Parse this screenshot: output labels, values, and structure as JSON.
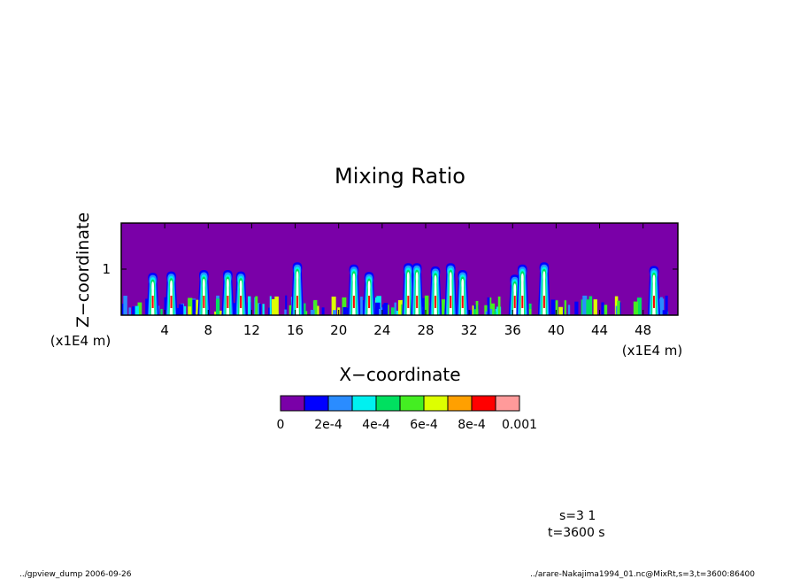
{
  "chart_data": {
    "type": "heatmap",
    "title": "Mixing Ratio",
    "xlabel": "X−coordinate",
    "ylabel": "Z−coordinate",
    "x_unit": "(x1E4 m)",
    "y_unit": "(x1E4 m)",
    "xlim": [
      0,
      51.2
    ],
    "ylim": [
      0,
      2
    ],
    "x_ticks": [
      4,
      8,
      12,
      16,
      20,
      24,
      28,
      32,
      36,
      40,
      44,
      48
    ],
    "y_ticks": [
      1
    ],
    "colorbar": {
      "colors": [
        "#7a00a8",
        "#0000ff",
        "#2a8cff",
        "#00f0f0",
        "#00e060",
        "#44ee22",
        "#ddff00",
        "#ffa000",
        "#ff0000",
        "#ff9a9a"
      ],
      "labels": [
        "0",
        "2e-4",
        "4e-4",
        "6e-4",
        "8e-4",
        "0.001"
      ]
    },
    "plumes": [
      {
        "x": 2.9,
        "top": 0.92
      },
      {
        "x": 4.6,
        "top": 0.95
      },
      {
        "x": 7.6,
        "top": 0.98
      },
      {
        "x": 9.8,
        "top": 0.98
      },
      {
        "x": 11.0,
        "top": 0.95
      },
      {
        "x": 16.2,
        "top": 1.15
      },
      {
        "x": 21.4,
        "top": 1.1
      },
      {
        "x": 22.8,
        "top": 0.94
      },
      {
        "x": 26.4,
        "top": 1.13
      },
      {
        "x": 27.2,
        "top": 1.13
      },
      {
        "x": 28.9,
        "top": 1.06
      },
      {
        "x": 30.3,
        "top": 1.13
      },
      {
        "x": 31.4,
        "top": 0.98
      },
      {
        "x": 36.2,
        "top": 0.88
      },
      {
        "x": 36.9,
        "top": 1.1
      },
      {
        "x": 38.9,
        "top": 1.15
      },
      {
        "x": 49.0,
        "top": 1.07
      }
    ]
  },
  "annotations": {
    "params": [
      "s=3 1",
      "t=3600 s"
    ],
    "footer_left": "../gpview_dump  2006-09-26",
    "footer_right": "../arare-Nakajima1994_01.nc@MixRt,s=3,t=3600:86400"
  }
}
